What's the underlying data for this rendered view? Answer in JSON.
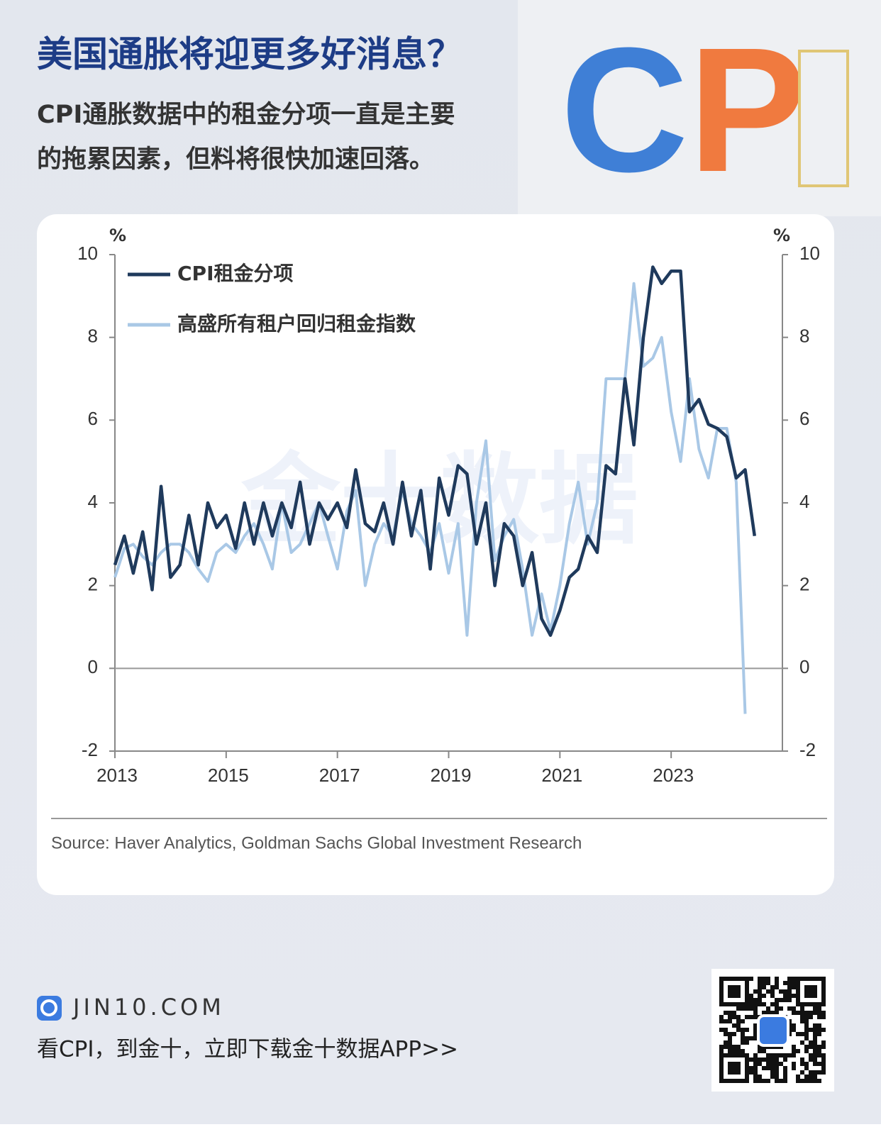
{
  "header": {
    "title": "美国通胀将迎更多好消息？",
    "subtitle": [
      "CPI通胀数据中的租金分项一直是主要",
      "的拖累因素，但料将很快加速回落。"
    ],
    "cover_text": "CPI"
  },
  "chart_data": {
    "type": "line",
    "y_unit": "%",
    "watermark": "金十数据",
    "source": "Source: Haver Analytics, Goldman Sachs Global Investment Research",
    "x": [
      2013.0,
      2013.17,
      2013.33,
      2013.5,
      2013.67,
      2013.83,
      2014.0,
      2014.17,
      2014.33,
      2014.5,
      2014.67,
      2014.83,
      2015.0,
      2015.17,
      2015.33,
      2015.5,
      2015.67,
      2015.83,
      2016.0,
      2016.17,
      2016.33,
      2016.5,
      2016.67,
      2016.83,
      2017.0,
      2017.17,
      2017.33,
      2017.5,
      2017.67,
      2017.83,
      2018.0,
      2018.17,
      2018.33,
      2018.5,
      2018.67,
      2018.83,
      2019.0,
      2019.17,
      2019.33,
      2019.5,
      2019.67,
      2019.83,
      2020.0,
      2020.17,
      2020.33,
      2020.5,
      2020.67,
      2020.83,
      2021.0,
      2021.17,
      2021.33,
      2021.5,
      2021.67,
      2021.83,
      2022.0,
      2022.17,
      2022.33,
      2022.5,
      2022.67,
      2022.83,
      2023.0,
      2023.17,
      2023.33,
      2023.5,
      2023.67,
      2023.83,
      2024.0,
      2024.17,
      2024.33,
      2024.5
    ],
    "series": [
      {
        "name": "CPI租金分项",
        "color": "#1f3a5c",
        "values": [
          2.5,
          3.2,
          2.3,
          3.3,
          1.9,
          4.4,
          2.2,
          2.5,
          3.7,
          2.5,
          4.0,
          3.4,
          3.7,
          2.9,
          4.0,
          3.0,
          4.0,
          3.2,
          4.0,
          3.4,
          4.5,
          3.0,
          4.0,
          3.6,
          4.0,
          3.4,
          4.8,
          3.5,
          3.3,
          4.0,
          3.0,
          4.5,
          3.2,
          4.3,
          2.4,
          4.6,
          3.7,
          4.9,
          4.7,
          3.0,
          4.0,
          2.0,
          3.5,
          3.2,
          2.0,
          2.8,
          1.2,
          0.8,
          1.4,
          2.2,
          2.4,
          3.2,
          2.8,
          4.9,
          4.7,
          7.0,
          5.4,
          8.0,
          9.7,
          9.3,
          9.6,
          9.6,
          6.2,
          6.5,
          5.9,
          5.8,
          5.6,
          4.6,
          4.8,
          3.2
        ]
      },
      {
        "name": "高盛所有租户回归租金指数",
        "color": "#a9c8e6",
        "values": [
          2.2,
          2.9,
          3.0,
          2.7,
          2.5,
          2.8,
          3.0,
          3.0,
          2.8,
          2.4,
          2.1,
          2.8,
          3.0,
          2.8,
          3.2,
          3.5,
          3.0,
          2.4,
          4.0,
          2.8,
          3.0,
          3.5,
          4.0,
          3.2,
          2.4,
          3.8,
          4.3,
          2.0,
          3.0,
          3.5,
          3.2,
          4.3,
          3.5,
          3.2,
          2.8,
          3.5,
          2.3,
          3.5,
          0.8,
          4.0,
          5.5,
          2.6,
          3.2,
          3.6,
          2.4,
          0.8,
          1.8,
          0.9,
          2.0,
          3.5,
          4.5,
          3.0,
          4.0,
          7.0,
          7.0,
          7.0,
          9.3,
          7.3,
          7.5,
          8.0,
          6.2,
          5.0,
          7.0,
          5.3,
          4.6,
          5.8,
          5.8,
          4.5,
          -1.1,
          null
        ]
      }
    ],
    "xlim": [
      2013,
      2025
    ],
    "xticks": [
      2013,
      2015,
      2017,
      2019,
      2021,
      2023
    ],
    "ylim": [
      -2,
      10
    ],
    "yticks": [
      -2,
      0,
      2,
      4,
      6,
      8,
      10
    ],
    "y2lim": [
      -2,
      10
    ],
    "y2ticks": [
      -2,
      0,
      2,
      4,
      6,
      8,
      10
    ],
    "zero_line": true
  },
  "footer": {
    "site": "JIN10.COM",
    "cta": "看CPI，到金十，立即下载金十数据APP>>"
  }
}
